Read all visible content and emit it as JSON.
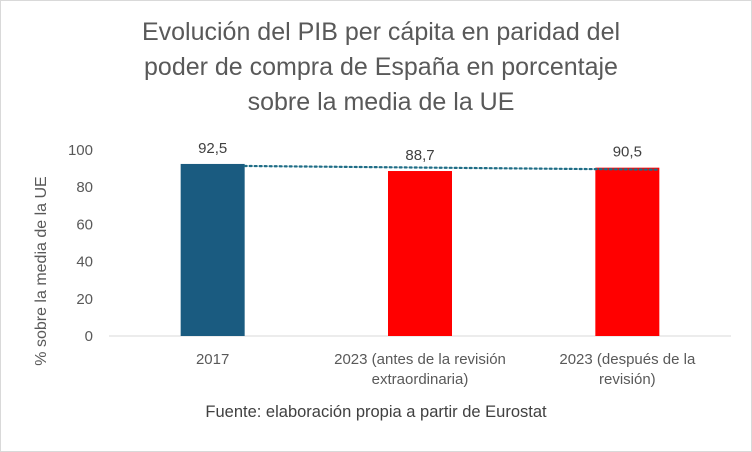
{
  "chart_data": {
    "type": "bar",
    "title_lines": [
      "Evolución del PIB per cápita en paridad del",
      "poder de compra de España en porcentaje",
      "sobre la media de la UE"
    ],
    "ylabel": "% sobre la media de la UE",
    "xlabel": "",
    "ylim": [
      0,
      100
    ],
    "yticks": [
      "0",
      "20",
      "40",
      "60",
      "80",
      "100"
    ],
    "ytick_values": [
      0,
      20,
      40,
      60,
      80,
      100
    ],
    "categories": [
      [
        "2017"
      ],
      [
        "2023 (antes de la revisión",
        "extraordinaria)"
      ],
      [
        "2023 (después de la",
        "revisión)"
      ]
    ],
    "values": [
      92.5,
      88.7,
      90.5
    ],
    "data_labels": [
      "92,5",
      "88,7",
      "90,5"
    ],
    "bar_colors": [
      "#1a5b80",
      "#ff0000",
      "#ff0000"
    ],
    "trendline": {
      "style": "dotted",
      "color": "#1f6d86"
    },
    "grid": false,
    "source": "Fuente: elaboración propia a partir de Eurostat"
  }
}
